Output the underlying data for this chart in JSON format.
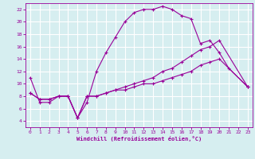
{
  "background_color": "#d6eef0",
  "grid_color": "#ffffff",
  "line_color": "#990099",
  "xlabel": "Windchill (Refroidissement éolien,°C)",
  "xlim": [
    -0.5,
    23.5
  ],
  "ylim": [
    3,
    23
  ],
  "xticks": [
    0,
    1,
    2,
    3,
    4,
    5,
    6,
    7,
    8,
    9,
    10,
    11,
    12,
    13,
    14,
    15,
    16,
    17,
    18,
    19,
    20,
    21,
    22,
    23
  ],
  "yticks": [
    4,
    6,
    8,
    10,
    12,
    14,
    16,
    18,
    20,
    22
  ],
  "series1_x": [
    0,
    1,
    2,
    3,
    4,
    5,
    6,
    7,
    8,
    9,
    10,
    11,
    12,
    13,
    14,
    15,
    16,
    17,
    18,
    19,
    20,
    21,
    23
  ],
  "series1_y": [
    11,
    7,
    7,
    8,
    8,
    4.5,
    7,
    12,
    15,
    17.5,
    20,
    21.5,
    22,
    22,
    22.5,
    22,
    21,
    20.5,
    16.5,
    17,
    15,
    12.5,
    9.5
  ],
  "series2_x": [
    0,
    1,
    2,
    3,
    4,
    5,
    6,
    7,
    8,
    9,
    10,
    11,
    12,
    13,
    14,
    15,
    16,
    17,
    18,
    19,
    20,
    23
  ],
  "series2_y": [
    8.5,
    7.5,
    7.5,
    8,
    8,
    4.5,
    8,
    8,
    8.5,
    9,
    9.5,
    10,
    10.5,
    11,
    12,
    12.5,
    13.5,
    14.5,
    15.5,
    16,
    17,
    9.5
  ],
  "series3_x": [
    0,
    1,
    2,
    3,
    4,
    5,
    6,
    7,
    8,
    9,
    10,
    11,
    12,
    13,
    14,
    15,
    16,
    17,
    18,
    19,
    20,
    23
  ],
  "series3_y": [
    8.5,
    7.5,
    7.5,
    8,
    8,
    4.5,
    8,
    8,
    8.5,
    9,
    9,
    9.5,
    10,
    10,
    10.5,
    11,
    11.5,
    12,
    13,
    13.5,
    14,
    9.5
  ]
}
